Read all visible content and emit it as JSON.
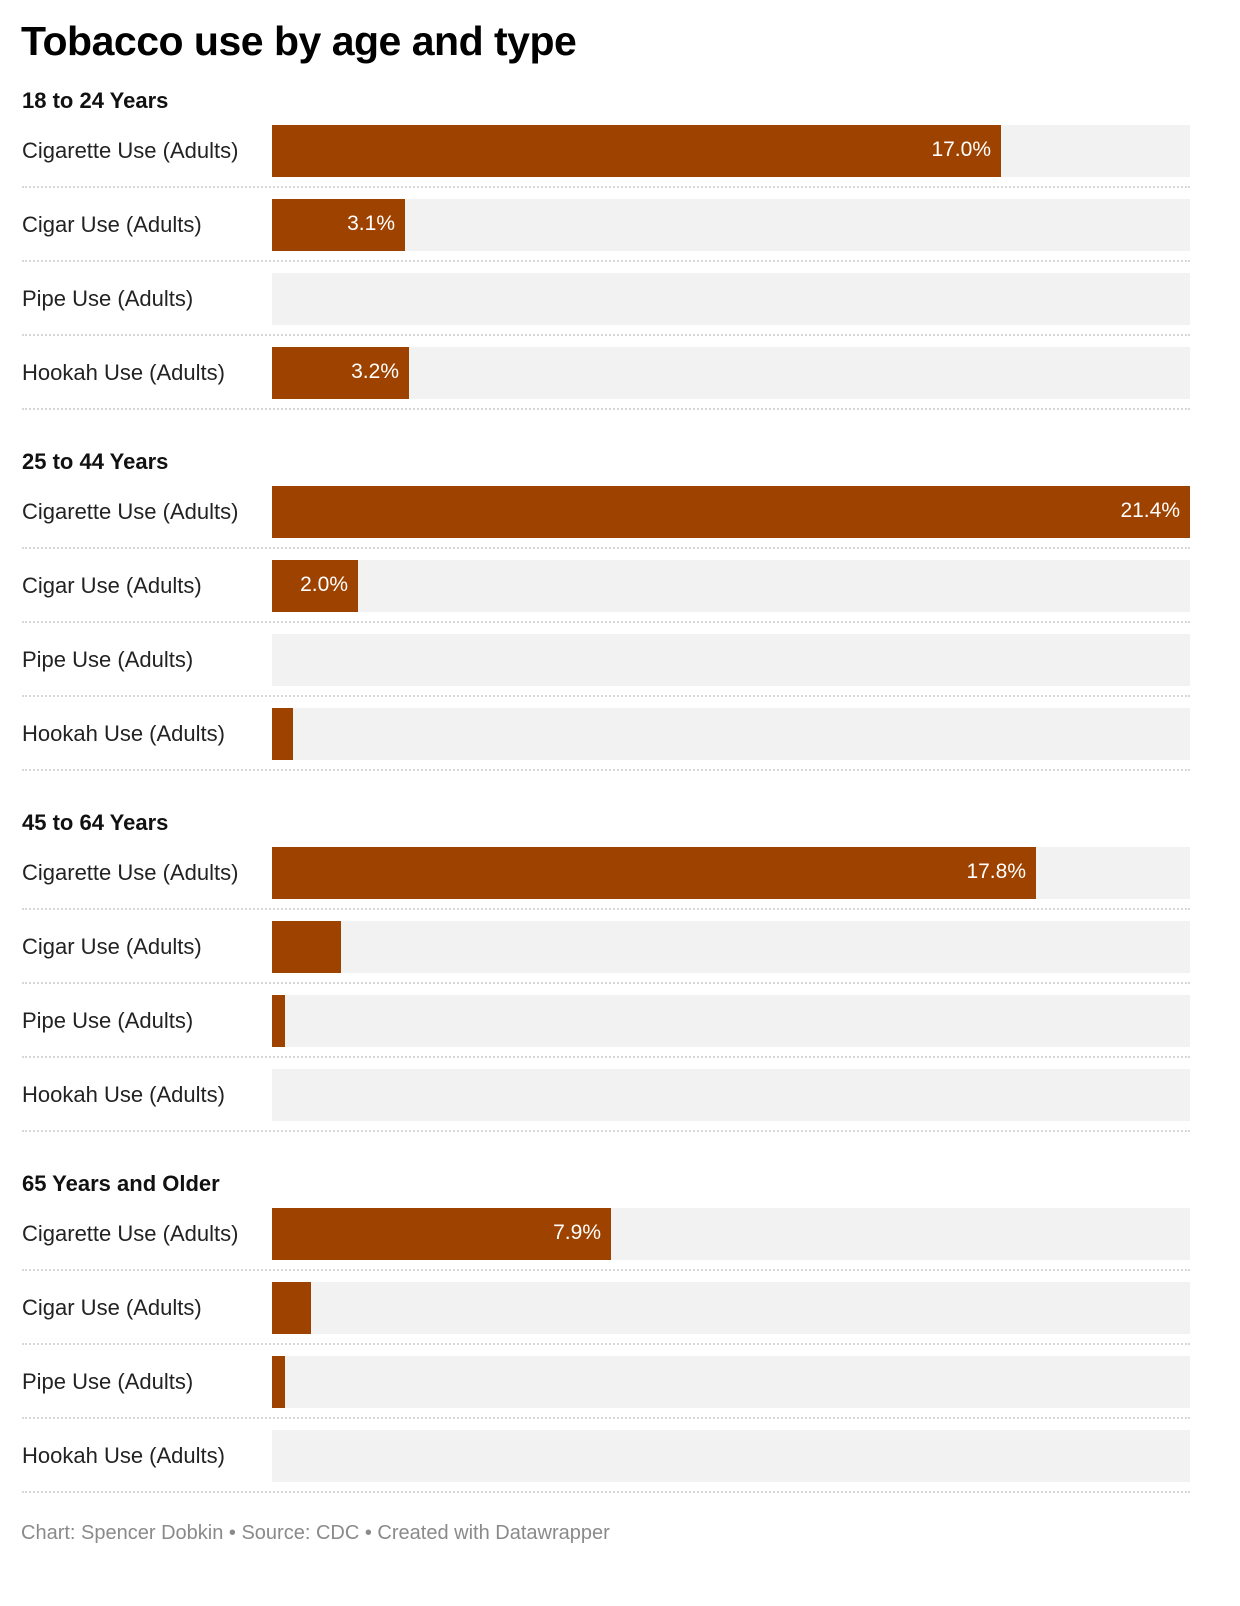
{
  "title": "Tobacco use by age and type",
  "footer": {
    "chart_by": "Chart: Spencer Dobkin",
    "source": "Source: CDC",
    "created_with": "Created with Datawrapper",
    "separator": "•"
  },
  "colors": {
    "bar": "#9e4200",
    "bar_background": "#f2f2f2",
    "value_label": "#ffffff"
  },
  "chart_data": {
    "type": "bar",
    "orientation": "horizontal",
    "x_max": 21.4,
    "unit": "%",
    "groups": [
      {
        "name": "18 to 24 Years",
        "rows": [
          {
            "label": "Cigarette Use (Adults)",
            "value": 17.0,
            "value_label": "17.0%"
          },
          {
            "label": "Cigar Use (Adults)",
            "value": 3.1,
            "value_label": "3.1%"
          },
          {
            "label": "Pipe Use (Adults)",
            "value": 0.0,
            "value_label": ""
          },
          {
            "label": "Hookah Use (Adults)",
            "value": 3.2,
            "value_label": "3.2%"
          }
        ]
      },
      {
        "name": "25 to 44 Years",
        "rows": [
          {
            "label": "Cigarette Use (Adults)",
            "value": 21.4,
            "value_label": "21.4%"
          },
          {
            "label": "Cigar Use (Adults)",
            "value": 2.0,
            "value_label": "2.0%"
          },
          {
            "label": "Pipe Use (Adults)",
            "value": 0.0,
            "value_label": ""
          },
          {
            "label": "Hookah Use (Adults)",
            "value": 0.5,
            "value_label": ""
          }
        ]
      },
      {
        "name": "45 to 64 Years",
        "rows": [
          {
            "label": "Cigarette Use (Adults)",
            "value": 17.8,
            "value_label": "17.8%"
          },
          {
            "label": "Cigar Use (Adults)",
            "value": 1.6,
            "value_label": ""
          },
          {
            "label": "Pipe Use (Adults)",
            "value": 0.3,
            "value_label": ""
          },
          {
            "label": "Hookah Use (Adults)",
            "value": 0.0,
            "value_label": ""
          }
        ]
      },
      {
        "name": "65 Years and Older",
        "rows": [
          {
            "label": "Cigarette Use (Adults)",
            "value": 7.9,
            "value_label": "7.9%"
          },
          {
            "label": "Cigar Use (Adults)",
            "value": 0.9,
            "value_label": ""
          },
          {
            "label": "Pipe Use (Adults)",
            "value": 0.3,
            "value_label": ""
          },
          {
            "label": "Hookah Use (Adults)",
            "value": 0.0,
            "value_label": ""
          }
        ]
      }
    ]
  }
}
